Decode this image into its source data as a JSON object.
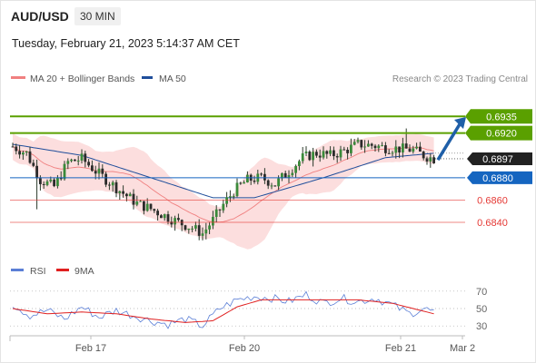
{
  "header": {
    "pair": "AUD/USD",
    "timeframe": "30 MIN",
    "datetime": "Tuesday, February 21, 2023 5:14:37 AM CET"
  },
  "chart_data": {
    "type": "candlestick",
    "title": "AUD/USD",
    "y_range": [
      0.6818,
      0.6958
    ],
    "legend": [
      {
        "name": "MA 20 + Bollinger Bands",
        "color": "#f08080"
      },
      {
        "name": "MA 50",
        "color": "#1f4e9b"
      }
    ],
    "credit": "Research © 2023 Trading Central",
    "x_ticks": [
      "Feb 17",
      "Feb 20",
      "Feb 21",
      "Mar 2"
    ],
    "levels": [
      {
        "label": "0.6935",
        "value": 0.6935,
        "kind": "resistance",
        "color": "#5aa000"
      },
      {
        "label": "0.6920",
        "value": 0.692,
        "kind": "resistance",
        "color": "#5aa000"
      },
      {
        "label": "0.6897",
        "value": 0.6897,
        "kind": "last-price",
        "color": "#222222"
      },
      {
        "label": "0.6880",
        "value": 0.688,
        "kind": "pivot",
        "color": "#1565c0"
      },
      {
        "label": "0.6860",
        "value": 0.686,
        "kind": "support",
        "color": "#e53935"
      },
      {
        "label": "0.6840",
        "value": 0.684,
        "kind": "support",
        "color": "#e53935"
      }
    ],
    "arrow": {
      "from": 0.6896,
      "to": 0.6932,
      "direction": "up",
      "color": "#1f5fa8"
    },
    "close_path": [
      [
        0,
        0.6908
      ],
      [
        4,
        0.6902
      ],
      [
        8,
        0.6878
      ],
      [
        12,
        0.6872
      ],
      [
        16,
        0.6894
      ],
      [
        20,
        0.6897
      ],
      [
        24,
        0.6886
      ],
      [
        28,
        0.6876
      ],
      [
        32,
        0.6866
      ],
      [
        36,
        0.6857
      ],
      [
        40,
        0.6852
      ],
      [
        44,
        0.6846
      ],
      [
        48,
        0.684
      ],
      [
        52,
        0.6835
      ],
      [
        55,
        0.683
      ],
      [
        58,
        0.6842
      ],
      [
        61,
        0.6856
      ],
      [
        64,
        0.6868
      ],
      [
        68,
        0.6878
      ],
      [
        72,
        0.688
      ],
      [
        76,
        0.6874
      ],
      [
        80,
        0.6886
      ],
      [
        84,
        0.6898
      ],
      [
        88,
        0.6902
      ],
      [
        92,
        0.69
      ],
      [
        96,
        0.6904
      ],
      [
        100,
        0.691
      ],
      [
        104,
        0.6909
      ],
      [
        108,
        0.6907
      ],
      [
        112,
        0.6906
      ],
      [
        116,
        0.6905
      ],
      [
        119,
        0.69
      ],
      [
        122,
        0.6897
      ]
    ],
    "ma50_path": [
      [
        0,
        0.691
      ],
      [
        20,
        0.69
      ],
      [
        40,
        0.688
      ],
      [
        58,
        0.6862
      ],
      [
        70,
        0.6862
      ],
      [
        90,
        0.688
      ],
      [
        108,
        0.6898
      ],
      [
        122,
        0.6902
      ]
    ],
    "rsi": {
      "legend": [
        {
          "name": "RSI",
          "color": "#5b7fd6"
        },
        {
          "name": "9MA",
          "color": "#e02020"
        }
      ],
      "ticks": [
        "70",
        "50",
        "30"
      ],
      "range": [
        25,
        75
      ],
      "rsi_path": [
        [
          0,
          55
        ],
        [
          5,
          42
        ],
        [
          10,
          48
        ],
        [
          15,
          38
        ],
        [
          20,
          52
        ],
        [
          25,
          40
        ],
        [
          30,
          48
        ],
        [
          35,
          42
        ],
        [
          40,
          36
        ],
        [
          45,
          32
        ],
        [
          50,
          38
        ],
        [
          55,
          30
        ],
        [
          60,
          50
        ],
        [
          65,
          60
        ],
        [
          70,
          64
        ],
        [
          75,
          62
        ],
        [
          80,
          58
        ],
        [
          85,
          66
        ],
        [
          90,
          56
        ],
        [
          95,
          62
        ],
        [
          100,
          58
        ],
        [
          105,
          62
        ],
        [
          110,
          54
        ],
        [
          115,
          44
        ],
        [
          119,
          50
        ],
        [
          122,
          46
        ]
      ],
      "ma_path": [
        [
          0,
          50
        ],
        [
          10,
          44
        ],
        [
          20,
          46
        ],
        [
          30,
          44
        ],
        [
          40,
          38
        ],
        [
          50,
          34
        ],
        [
          58,
          36
        ],
        [
          65,
          52
        ],
        [
          72,
          60
        ],
        [
          80,
          60
        ],
        [
          90,
          60
        ],
        [
          100,
          60
        ],
        [
          110,
          56
        ],
        [
          116,
          50
        ],
        [
          122,
          44
        ]
      ]
    }
  }
}
